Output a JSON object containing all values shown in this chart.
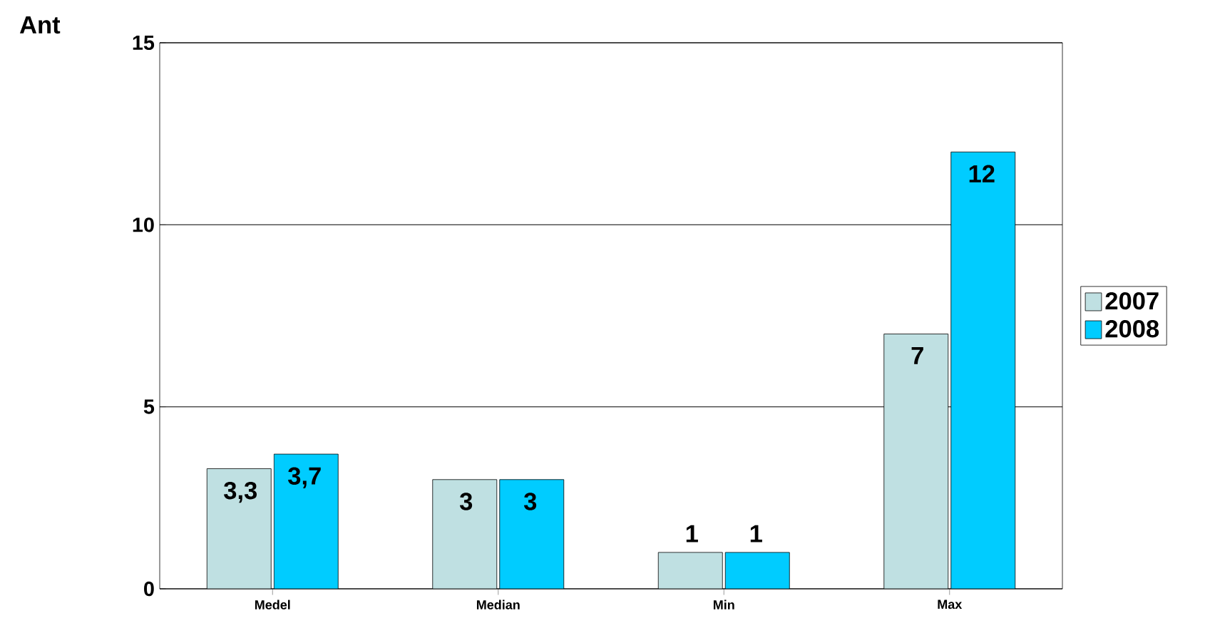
{
  "chart_data": {
    "type": "bar",
    "ylabel": "Ant",
    "categories": [
      "Medel",
      "Median",
      "Min",
      "Max"
    ],
    "series": [
      {
        "name": "2007",
        "color": "#bfe0e2",
        "values": [
          3.3,
          3,
          1,
          7
        ],
        "value_labels": [
          "3,3",
          "3",
          "1",
          "7"
        ]
      },
      {
        "name": "2008",
        "color": "#00ccff",
        "values": [
          3.7,
          3,
          1,
          12
        ],
        "value_labels": [
          "3,7",
          "3",
          "1",
          "12"
        ]
      }
    ],
    "ylim": [
      0,
      15
    ],
    "yticks": [
      0,
      5,
      10,
      15
    ],
    "grid": "y",
    "legend": "right"
  }
}
